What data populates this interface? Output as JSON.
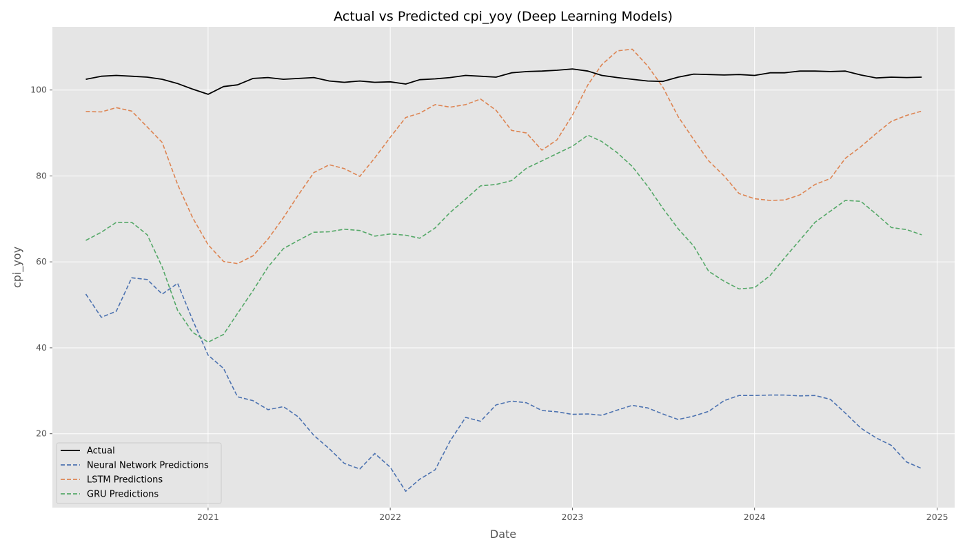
{
  "chart_data": {
    "type": "line",
    "title": "Actual vs Predicted cpi_yoy (Deep Learning Models)",
    "xlabel": "Date",
    "ylabel": "cpi_yoy",
    "x_tick_labels": [
      "2021",
      "2022",
      "2023",
      "2024",
      "2025"
    ],
    "y_tick_labels": [
      "20",
      "40",
      "60",
      "80",
      "100"
    ],
    "xlim": [
      "2020-02-24",
      "2025-02-05"
    ],
    "ylim": [
      2.8,
      114.7
    ],
    "grid": true,
    "legend_position": "lower-left",
    "x": [
      "2020-05-01",
      "2020-06-01",
      "2020-07-01",
      "2020-08-01",
      "2020-09-01",
      "2020-10-01",
      "2020-11-01",
      "2020-12-01",
      "2021-01-01",
      "2021-02-01",
      "2021-03-01",
      "2021-04-01",
      "2021-05-01",
      "2021-06-01",
      "2021-07-01",
      "2021-08-01",
      "2021-09-01",
      "2021-10-01",
      "2021-11-01",
      "2021-12-01",
      "2022-01-01",
      "2022-02-01",
      "2022-03-01",
      "2022-04-01",
      "2022-05-01",
      "2022-06-01",
      "2022-07-01",
      "2022-08-01",
      "2022-09-01",
      "2022-10-01",
      "2022-11-01",
      "2022-12-01",
      "2023-01-01",
      "2023-02-01",
      "2023-03-01",
      "2023-04-01",
      "2023-05-01",
      "2023-06-01",
      "2023-07-01",
      "2023-08-01",
      "2023-09-01",
      "2023-10-01",
      "2023-11-01",
      "2023-12-01",
      "2024-01-01",
      "2024-02-01",
      "2024-03-01",
      "2024-04-01",
      "2024-05-01",
      "2024-06-01",
      "2024-07-01",
      "2024-08-01",
      "2024-09-01",
      "2024-10-01",
      "2024-11-01",
      "2024-12-01"
    ],
    "series": [
      {
        "name": "Actual",
        "color": "#000000",
        "style": "solid",
        "values": [
          102.5,
          103.2,
          103.4,
          103.2,
          103.0,
          102.5,
          101.5,
          100.2,
          99.0,
          100.8,
          101.2,
          102.7,
          102.9,
          102.5,
          102.7,
          102.9,
          102.1,
          101.8,
          102.1,
          101.8,
          101.9,
          101.4,
          102.4,
          102.6,
          102.9,
          103.4,
          103.2,
          103.0,
          104.0,
          104.3,
          104.4,
          104.6,
          104.9,
          104.4,
          103.4,
          102.9,
          102.5,
          102.1,
          102.0,
          103.0,
          103.7,
          103.6,
          103.5,
          103.6,
          103.4,
          104.0,
          104.0,
          104.4,
          104.4,
          104.3,
          104.4,
          103.5,
          102.8,
          103.0,
          102.9,
          103.0
        ]
      },
      {
        "name": "Neural Network Predictions",
        "color": "#4c72b0",
        "style": "dashed",
        "values": [
          52.5,
          47.1,
          48.5,
          56.3,
          55.9,
          52.5,
          55.0,
          46.5,
          38.3,
          35.2,
          28.6,
          27.7,
          25.6,
          26.3,
          23.9,
          19.6,
          16.5,
          13.1,
          11.8,
          15.4,
          12.2,
          6.6,
          9.4,
          11.6,
          18.3,
          23.8,
          22.9,
          26.7,
          27.6,
          27.2,
          25.4,
          25.1,
          24.5,
          24.6,
          24.3,
          25.5,
          26.6,
          26.0,
          24.6,
          23.3,
          24.1,
          25.2,
          27.7,
          28.9,
          28.9,
          29.0,
          29.0,
          28.8,
          28.9,
          28.0,
          24.8,
          21.3,
          19.0,
          17.3,
          13.4,
          11.9
        ]
      },
      {
        "name": "LSTM Predictions",
        "color": "#dd8452",
        "style": "dashed",
        "values": [
          95.0,
          94.9,
          95.9,
          95.1,
          91.4,
          87.8,
          78.0,
          70.3,
          64.0,
          60.1,
          59.6,
          61.4,
          65.3,
          70.3,
          75.6,
          80.8,
          82.6,
          81.7,
          79.9,
          84.2,
          89.0,
          93.6,
          94.6,
          96.6,
          96.0,
          96.6,
          97.9,
          95.3,
          90.6,
          90.0,
          86.0,
          88.4,
          94.1,
          101.2,
          105.9,
          109.1,
          109.5,
          105.6,
          100.7,
          93.8,
          88.5,
          83.5,
          80.0,
          75.9,
          74.7,
          74.3,
          74.4,
          75.6,
          78.0,
          79.4,
          84.1,
          86.8,
          89.9,
          92.7,
          94.1,
          95.1
        ]
      },
      {
        "name": "GRU Predictions",
        "color": "#55a868",
        "style": "dashed",
        "values": [
          65.0,
          66.9,
          69.2,
          69.2,
          66.3,
          58.8,
          48.7,
          43.6,
          41.3,
          43.1,
          48.0,
          53.3,
          58.8,
          63.1,
          65.0,
          66.9,
          67.0,
          67.6,
          67.3,
          66.0,
          66.5,
          66.2,
          65.5,
          67.9,
          71.5,
          74.6,
          77.7,
          78.0,
          78.9,
          81.8,
          83.5,
          85.2,
          86.9,
          89.5,
          88.0,
          85.4,
          82.2,
          77.6,
          72.5,
          67.7,
          63.7,
          57.8,
          55.5,
          53.7,
          54.0,
          56.8,
          60.9,
          65.1,
          69.2,
          71.8,
          74.3,
          74.1,
          71.1,
          68.0,
          67.5,
          66.3
        ]
      }
    ]
  }
}
